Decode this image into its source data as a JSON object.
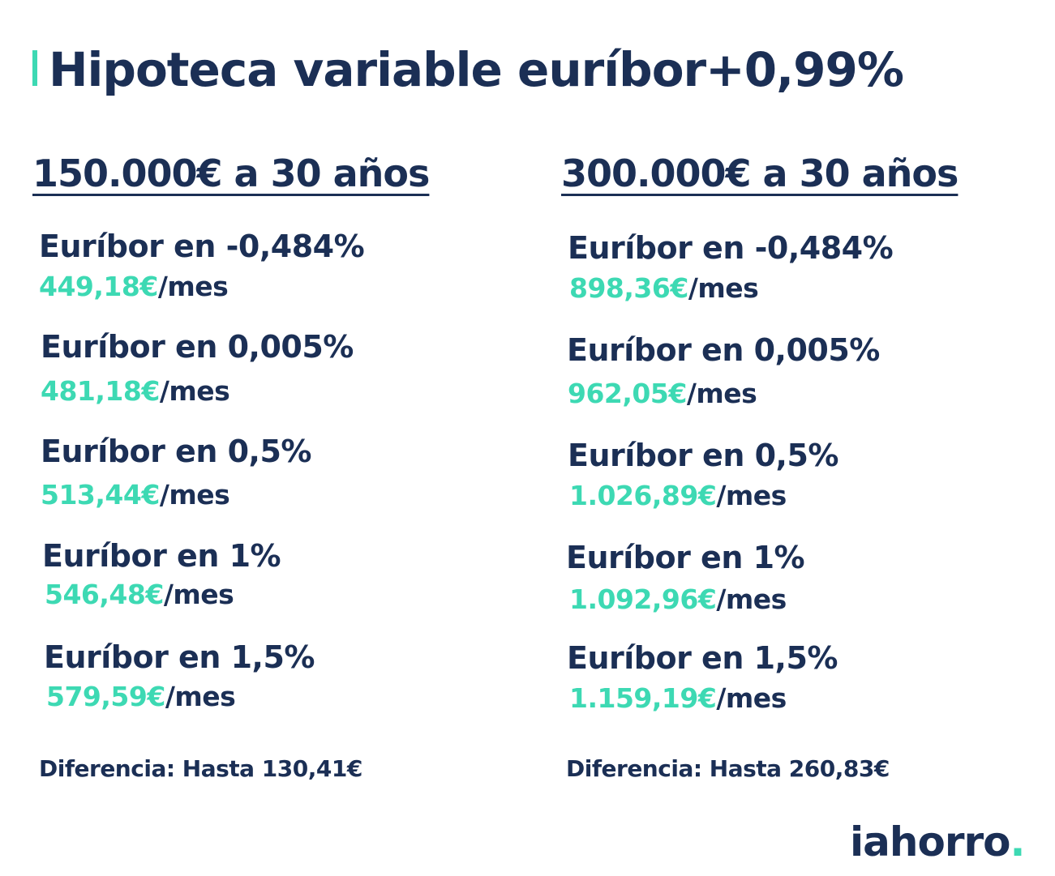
{
  "title": "Hipoteca variable euríbor+0,99%",
  "accent_color": "#3dd9b3",
  "text_color": "#1b2f55",
  "columns": [
    {
      "heading": "150.000€ a 30 años",
      "scenarios": [
        {
          "label": "Euríbor en -0,484%",
          "amount": "449,18€",
          "unit": "/mes"
        },
        {
          "label": "Euríbor en 0,005%",
          "amount": "481,18€",
          "unit": "/mes"
        },
        {
          "label": "Euríbor en 0,5%",
          "amount": "513,44€",
          "unit": "/mes"
        },
        {
          "label": "Euríbor en 1%",
          "amount": "546,48€",
          "unit": "/mes"
        },
        {
          "label": "Euríbor en 1,5%",
          "amount": "579,59€",
          "unit": "/mes"
        }
      ],
      "difference": "Diferencia: Hasta 130,41€"
    },
    {
      "heading": "300.000€ a 30 años",
      "scenarios": [
        {
          "label": "Euríbor en -0,484%",
          "amount": "898,36€",
          "unit": "/mes"
        },
        {
          "label": "Euríbor en 0,005%",
          "amount": "962,05€",
          "unit": "/mes"
        },
        {
          "label": "Euríbor en 0,5%",
          "amount": "1.026,89€",
          "unit": "/mes"
        },
        {
          "label": "Euríbor en 1%",
          "amount": "1.092,96€",
          "unit": "/mes"
        },
        {
          "label": "Euríbor en 1,5%",
          "amount": "1.159,19€",
          "unit": "/mes"
        }
      ],
      "difference": "Diferencia: Hasta 260,83€"
    }
  ],
  "logo": {
    "text": "iahorro",
    "dot": "."
  }
}
